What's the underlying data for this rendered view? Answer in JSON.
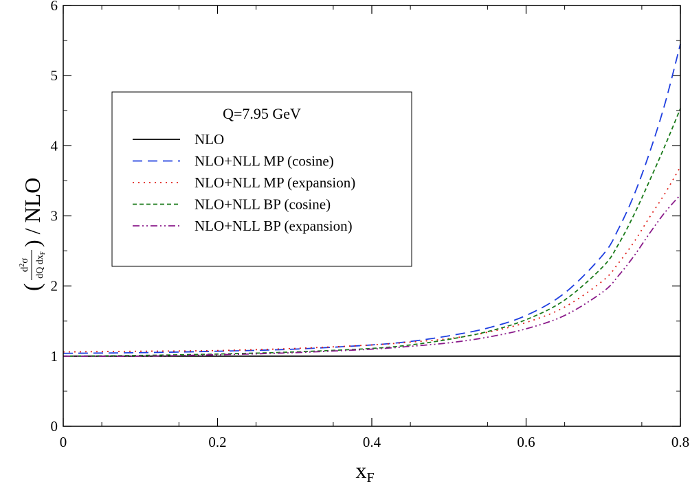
{
  "chart_data": {
    "type": "line",
    "title": "",
    "xlabel": "x",
    "xlabel_sub": "F",
    "ylabel": {
      "open_paren": "(",
      "num_d": "d",
      "num_sup": "2",
      "num_sigma": "σ",
      "den": "dQ dx",
      "den_sub": "F",
      "close": ") / NLO"
    },
    "xlim": [
      0,
      0.8
    ],
    "ylim": [
      0,
      6
    ],
    "x_ticks": [
      0,
      0.2,
      0.4,
      0.6,
      0.8
    ],
    "x_tick_labels": [
      "0",
      "0.2",
      "0.4",
      "0.6",
      "0.8"
    ],
    "y_ticks": [
      0,
      1,
      2,
      3,
      4,
      5,
      6
    ],
    "y_tick_labels": [
      "0",
      "1",
      "2",
      "3",
      "4",
      "5",
      "6"
    ],
    "grid": false,
    "legend": {
      "placement": "upper-left",
      "title": "Q=7.95 GeV"
    },
    "series": [
      {
        "name": "NLO",
        "color": "#000000",
        "dash": "solid",
        "x": [
          0,
          0.8
        ],
        "y": [
          1,
          1
        ]
      },
      {
        "name": "NLO+NLL MP (cosine)",
        "color": "#1f3fe0",
        "dash": "dashed",
        "x": [
          0,
          0.1,
          0.2,
          0.3,
          0.4,
          0.45,
          0.5,
          0.55,
          0.6,
          0.65,
          0.7,
          0.72,
          0.74,
          0.76,
          0.78,
          0.8
        ],
        "y": [
          1.04,
          1.05,
          1.07,
          1.1,
          1.16,
          1.21,
          1.29,
          1.4,
          1.58,
          1.9,
          2.45,
          2.82,
          3.3,
          3.9,
          4.6,
          5.45
        ]
      },
      {
        "name": "NLO+NLL MP (expansion)",
        "color": "#e0201a",
        "dash": "dotted",
        "x": [
          0,
          0.1,
          0.2,
          0.3,
          0.4,
          0.45,
          0.5,
          0.55,
          0.6,
          0.65,
          0.7,
          0.72,
          0.74,
          0.76,
          0.78,
          0.8
        ],
        "y": [
          1.06,
          1.07,
          1.08,
          1.11,
          1.16,
          1.2,
          1.25,
          1.34,
          1.48,
          1.7,
          2.08,
          2.33,
          2.63,
          2.98,
          3.32,
          3.7
        ]
      },
      {
        "name": "NLO+NLL BP (cosine)",
        "color": "#1a7a1a",
        "dash": "short-dashed",
        "x": [
          0,
          0.1,
          0.2,
          0.3,
          0.4,
          0.45,
          0.5,
          0.55,
          0.6,
          0.65,
          0.7,
          0.72,
          0.74,
          0.76,
          0.78,
          0.8
        ],
        "y": [
          1.0,
          1.01,
          1.03,
          1.06,
          1.11,
          1.16,
          1.24,
          1.35,
          1.52,
          1.8,
          2.28,
          2.6,
          3.02,
          3.5,
          4.0,
          4.53
        ]
      },
      {
        "name": "NLO+NLL BP (expansion)",
        "color": "#8a1a8a",
        "dash": "dash-dot-dot",
        "x": [
          0,
          0.1,
          0.2,
          0.3,
          0.4,
          0.45,
          0.5,
          0.55,
          0.6,
          0.65,
          0.7,
          0.72,
          0.74,
          0.76,
          0.78,
          0.8
        ],
        "y": [
          1.0,
          1.0,
          1.02,
          1.05,
          1.1,
          1.14,
          1.19,
          1.27,
          1.39,
          1.58,
          1.92,
          2.15,
          2.43,
          2.75,
          3.05,
          3.3
        ]
      }
    ]
  }
}
